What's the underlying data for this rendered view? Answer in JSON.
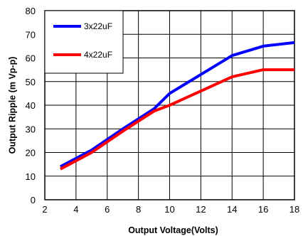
{
  "chart_data": {
    "type": "line",
    "title": "",
    "xlabel": "Output Voltage(Volts)",
    "ylabel": "Output Ripple (m Vp-p)",
    "xlim": [
      2,
      18
    ],
    "ylim": [
      0,
      80
    ],
    "xticks": [
      2,
      4,
      6,
      8,
      10,
      12,
      14,
      16,
      18
    ],
    "yticks": [
      0,
      10,
      20,
      30,
      40,
      50,
      60,
      70,
      80
    ],
    "grid": true,
    "legend_position": "top-left",
    "series": [
      {
        "name": "3x22uF",
        "color": "#0000ff",
        "x": [
          3,
          5,
          7,
          9,
          10,
          12,
          14,
          16,
          18
        ],
        "y": [
          14,
          21,
          30,
          38.5,
          45,
          53,
          61,
          65,
          66.5
        ]
      },
      {
        "name": "4x22uF",
        "color": "#ff0000",
        "x": [
          3,
          5,
          7,
          9,
          10,
          12,
          14,
          16,
          18
        ],
        "y": [
          13,
          20,
          29,
          37.5,
          40,
          46,
          52,
          55,
          55
        ]
      }
    ]
  }
}
